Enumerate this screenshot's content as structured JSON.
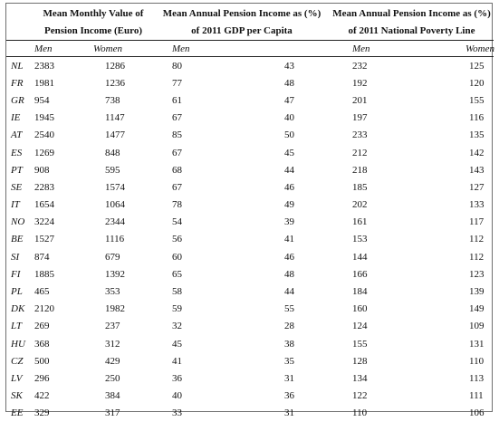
{
  "headers": {
    "group1_line1": "Mean Monthly Value of",
    "group1_line2": "Pension Income (Euro)",
    "group2_line1": "Mean Annual Pension Income as (%)",
    "group2_line2": "of 2011 GDP per Capita",
    "group3_line1": "Mean Annual Pension Income as (%)",
    "group3_line2": "of 2011 National Poverty Line"
  },
  "subheaders": {
    "men": "Men",
    "women": "Women"
  },
  "rows": [
    [
      "NL",
      "2383",
      "1286",
      "80",
      "43",
      "232",
      "125"
    ],
    [
      "FR",
      "1981",
      "1236",
      "77",
      "48",
      "192",
      "120"
    ],
    [
      "GR",
      "954",
      "738",
      "61",
      "47",
      "201",
      "155"
    ],
    [
      "IE",
      "1945",
      "1147",
      "67",
      "40",
      "197",
      "116"
    ],
    [
      "AT",
      "2540",
      "1477",
      "85",
      "50",
      "233",
      "135"
    ],
    [
      "ES",
      "1269",
      "848",
      "67",
      "45",
      "212",
      "142"
    ],
    [
      "PT",
      "908",
      "595",
      "68",
      "44",
      "218",
      "143"
    ],
    [
      "SE",
      "2283",
      "1574",
      "67",
      "46",
      "185",
      "127"
    ],
    [
      "IT",
      "1654",
      "1064",
      "78",
      "49",
      "202",
      "133"
    ],
    [
      "NO",
      "3224",
      "2344",
      "54",
      "39",
      "161",
      "117"
    ],
    [
      "BE",
      "1527",
      "1116",
      "56",
      "41",
      "153",
      "112"
    ],
    [
      "SI",
      "874",
      "679",
      "60",
      "46",
      "144",
      "112"
    ],
    [
      "FI",
      "1885",
      "1392",
      "65",
      "48",
      "166",
      "123"
    ],
    [
      "PL",
      "465",
      "353",
      "58",
      "44",
      "184",
      "139"
    ],
    [
      "DK",
      "2120",
      "1982",
      "59",
      "55",
      "160",
      "149"
    ],
    [
      "LT",
      "269",
      "237",
      "32",
      "28",
      "124",
      "109"
    ],
    [
      "HU",
      "368",
      "312",
      "45",
      "38",
      "155",
      "131"
    ],
    [
      "CZ",
      "500",
      "429",
      "41",
      "35",
      "128",
      "110"
    ],
    [
      "LV",
      "296",
      "250",
      "36",
      "31",
      "134",
      "113"
    ],
    [
      "SK",
      "422",
      "384",
      "40",
      "36",
      "122",
      "111"
    ],
    [
      "EE",
      "329",
      "317",
      "33",
      "31",
      "110",
      "106"
    ]
  ]
}
